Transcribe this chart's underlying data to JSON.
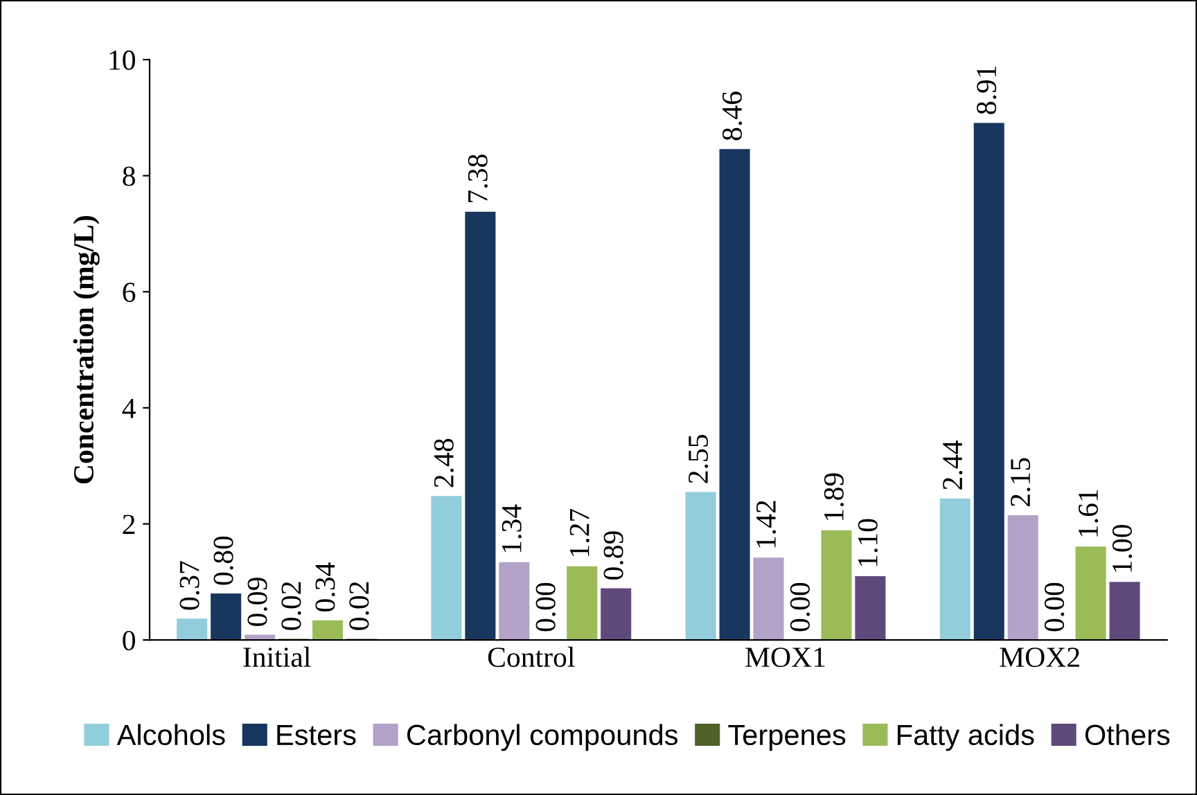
{
  "chart_data": {
    "type": "bar",
    "ylabel": "Concentration (mg/L)",
    "categories": [
      "Initial",
      "Control",
      "MOX1",
      "MOX2"
    ],
    "series": [
      {
        "name": "Alcohols",
        "color": "#92cddc",
        "values": [
          0.37,
          2.48,
          2.55,
          2.44
        ],
        "value_labels": [
          "0.37",
          "2.48",
          "2.55",
          "2.44"
        ]
      },
      {
        "name": "Esters",
        "color": "#17375e",
        "values": [
          0.8,
          7.38,
          8.46,
          8.91
        ],
        "value_labels": [
          "0.80",
          "7.38",
          "8.46",
          "8.91"
        ]
      },
      {
        "name": "Carbonyl compounds",
        "color": "#b3a2c7",
        "values": [
          0.09,
          1.34,
          1.42,
          2.15
        ],
        "value_labels": [
          "0.09",
          "1.34",
          "1.42",
          "2.15"
        ]
      },
      {
        "name": "Terpenes",
        "color": "#4f6228",
        "values": [
          0.02,
          0.0,
          0.0,
          0.0
        ],
        "value_labels": [
          "0.02",
          "0.00",
          "0.00",
          "0.00"
        ]
      },
      {
        "name": "Fatty acids",
        "color": "#9bbb59",
        "values": [
          0.34,
          1.27,
          1.89,
          1.61
        ],
        "value_labels": [
          "0.34",
          "1.27",
          "1.89",
          "1.61"
        ]
      },
      {
        "name": "Others",
        "color": "#604a7b",
        "values": [
          0.02,
          0.89,
          1.1,
          1.0
        ],
        "value_labels": [
          "0.02",
          "0.89",
          "1.10",
          "1.00"
        ]
      }
    ],
    "ylim": [
      0,
      10
    ],
    "yticks": [
      0,
      2,
      4,
      6,
      8,
      10
    ],
    "legend": "bottom",
    "grid": false
  }
}
